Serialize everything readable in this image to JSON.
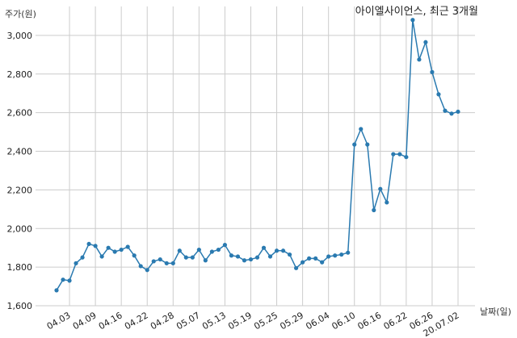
{
  "chart_data": {
    "type": "line",
    "title": "아이엘사이언스, 최근 3개월",
    "xlabel": "날짜(일)",
    "ylabel": "주가(원)",
    "ylim": [
      1600,
      3150
    ],
    "yticks": [
      1600,
      1800,
      2000,
      2200,
      2400,
      2600,
      2800,
      3000
    ],
    "ytick_labels": [
      "1,600",
      "1,800",
      "2,000",
      "2,200",
      "2,400",
      "2,600",
      "2,800",
      "3,000"
    ],
    "xtick_labels": [
      "04.03",
      "04.09",
      "04.16",
      "04.22",
      "04.28",
      "05.07",
      "05.13",
      "05.19",
      "05.25",
      "05.29",
      "06.04",
      "06.10",
      "06.16",
      "06.22",
      "06.26",
      "20.07.02"
    ],
    "xtick_index": [
      2,
      6,
      10,
      14,
      18,
      22,
      26,
      30,
      34,
      38,
      42,
      46,
      50,
      54,
      58,
      62
    ],
    "grid": true,
    "line_color": "#2a7ab0",
    "series": [
      {
        "values": [
          1680,
          1735,
          1730,
          1820,
          1850,
          1920,
          1910,
          1855,
          1900,
          1880,
          1890,
          1905,
          1860,
          1805,
          1785,
          1830,
          1840,
          1820,
          1820,
          1885,
          1850,
          1850,
          1890,
          1835,
          1880,
          1890,
          1915,
          1860,
          1855,
          1835,
          1840,
          1850,
          1900,
          1855,
          1885,
          1885,
          1865,
          1795,
          1825,
          1845,
          1845,
          1825,
          1855,
          1860,
          1865,
          1875,
          2435,
          2515,
          2435,
          2095,
          2205,
          2135,
          2385,
          2385,
          2370,
          3080,
          2875,
          2965,
          2810,
          2695,
          2610,
          2595,
          2605
        ]
      }
    ]
  }
}
